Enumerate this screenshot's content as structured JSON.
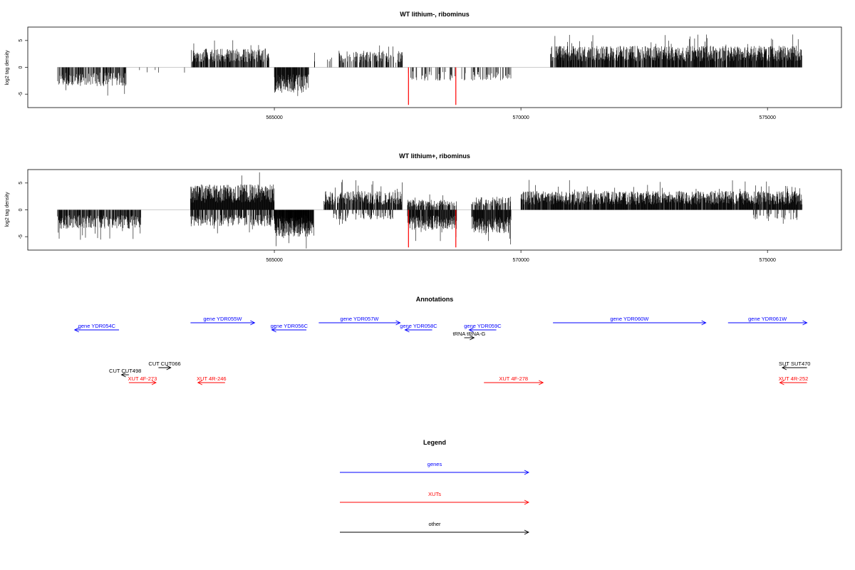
{
  "chart_data": [
    {
      "type": "bar",
      "title": "WT lithium-, ribominus",
      "ylabel": "log2 tag density",
      "xlim": [
        560000,
        576500
      ],
      "ylim": [
        -7.5,
        7.5
      ],
      "xticks": [
        565000,
        570000,
        575000
      ],
      "xtick_labels": [
        "565000",
        "570000",
        "575000"
      ],
      "yticks": [
        -5,
        0,
        5
      ],
      "ytick_labels": [
        "-5",
        "0",
        "5"
      ],
      "highlight_color": "#ff0000",
      "highlight_bars": [
        {
          "x": 567720,
          "y": -7
        },
        {
          "x": 568680,
          "y": -7
        }
      ],
      "segments": [
        {
          "from": 560600,
          "to": 562000,
          "sign": -1,
          "mean": 2.8,
          "density": 0.6
        },
        {
          "from": 562200,
          "to": 563200,
          "sign": -1,
          "mean": 0.8,
          "density": 0.05
        },
        {
          "from": 563300,
          "to": 564900,
          "sign": 1,
          "mean": 2.8,
          "density": 0.7
        },
        {
          "from": 565000,
          "to": 565700,
          "sign": -1,
          "mean": 3.8,
          "density": 0.9
        },
        {
          "from": 565800,
          "to": 566200,
          "sign": 1,
          "mean": 1.5,
          "density": 0.1
        },
        {
          "from": 566300,
          "to": 567600,
          "sign": 1,
          "mean": 2.5,
          "density": 0.5
        },
        {
          "from": 567700,
          "to": 568700,
          "sign": -1,
          "mean": 2.0,
          "density": 0.2
        },
        {
          "from": 568800,
          "to": 569800,
          "sign": -1,
          "mean": 2.0,
          "density": 0.3
        },
        {
          "from": 570600,
          "to": 575700,
          "sign": 1,
          "mean": 3.2,
          "density": 0.85
        }
      ]
    },
    {
      "type": "bar",
      "title": "WT lithium+, ribominus",
      "ylabel": "log2 tag density",
      "xlim": [
        560000,
        576500
      ],
      "ylim": [
        -7.5,
        7.5
      ],
      "xticks": [
        565000,
        570000,
        575000
      ],
      "xtick_labels": [
        "565000",
        "570000",
        "575000"
      ],
      "yticks": [
        -5,
        0,
        5
      ],
      "ytick_labels": [
        "-5",
        "0",
        "5"
      ],
      "highlight_color": "#ff0000",
      "highlight_bars": [
        {
          "x": 567720,
          "y": -7
        },
        {
          "x": 568680,
          "y": -7
        }
      ],
      "segments": [
        {
          "from": 560600,
          "to": 562300,
          "sign": -1,
          "mean": 2.8,
          "density": 0.7
        },
        {
          "from": 563300,
          "to": 565000,
          "sign": 1,
          "mean": 3.8,
          "density": 1.0
        },
        {
          "from": 563300,
          "to": 565700,
          "sign": -1,
          "mean": 2.5,
          "density": 0.6
        },
        {
          "from": 565000,
          "to": 565800,
          "sign": -1,
          "mean": 4.0,
          "density": 1.0
        },
        {
          "from": 566000,
          "to": 567600,
          "sign": 1,
          "mean": 2.8,
          "density": 0.8
        },
        {
          "from": 566200,
          "to": 567400,
          "sign": -1,
          "mean": 1.5,
          "density": 0.3
        },
        {
          "from": 567700,
          "to": 568700,
          "sign": 1,
          "mean": 1.5,
          "density": 0.6
        },
        {
          "from": 567700,
          "to": 568700,
          "sign": -1,
          "mean": 3.0,
          "density": 0.9
        },
        {
          "from": 569000,
          "to": 569800,
          "sign": -1,
          "mean": 3.5,
          "density": 0.9
        },
        {
          "from": 569000,
          "to": 569800,
          "sign": 1,
          "mean": 2.0,
          "density": 0.5
        },
        {
          "from": 570000,
          "to": 575700,
          "sign": 1,
          "mean": 2.8,
          "density": 0.9
        },
        {
          "from": 574700,
          "to": 575700,
          "sign": -1,
          "mean": 1.5,
          "density": 0.2
        }
      ]
    }
  ],
  "annotations": {
    "title": "Annotations",
    "features": [
      {
        "label": "gene YDR054C",
        "start": 561850,
        "end": 560950,
        "color": "#0000ff",
        "lane": 1
      },
      {
        "label": "gene YDR055W",
        "start": 563300,
        "end": 564600,
        "color": "#0000ff",
        "lane": 0
      },
      {
        "label": "gene YDR056C",
        "start": 565650,
        "end": 564950,
        "color": "#0000ff",
        "lane": 1
      },
      {
        "label": "gene YDR057W",
        "start": 565900,
        "end": 567550,
        "color": "#0000ff",
        "lane": 0
      },
      {
        "label": "gene YDR058C",
        "start": 568200,
        "end": 567650,
        "color": "#0000ff",
        "lane": 1
      },
      {
        "label": "gene YDR059C",
        "start": 569500,
        "end": 568950,
        "color": "#0000ff",
        "lane": 1
      },
      {
        "label": "gene YDR060W",
        "start": 570650,
        "end": 573750,
        "color": "#0000ff",
        "lane": 0
      },
      {
        "label": "gene YDR061W",
        "start": 574200,
        "end": 575800,
        "color": "#0000ff",
        "lane": 0
      },
      {
        "label": "tRNA tRNA-G",
        "start": 568850,
        "end": 569050,
        "color": "#000000",
        "lane": 2
      },
      {
        "label": "CUT CUT066",
        "start": 562650,
        "end": 562900,
        "color": "#000000",
        "lane": 3
      },
      {
        "label": "CUT CUT498",
        "start": 562050,
        "end": 561900,
        "color": "#000000",
        "lane": 4
      },
      {
        "label": "XUT 4F-273",
        "start": 562050,
        "end": 562600,
        "color": "#ff0000",
        "lane": 5
      },
      {
        "label": "XUT 4R-246",
        "start": 564000,
        "end": 563450,
        "color": "#ff0000",
        "lane": 5
      },
      {
        "label": "XUT 4F-278",
        "start": 569250,
        "end": 570450,
        "color": "#ff0000",
        "lane": 5
      },
      {
        "label": "SUT SUT470",
        "start": 575800,
        "end": 575300,
        "color": "#000000",
        "lane": 3
      },
      {
        "label": "XUT 4R-252",
        "start": 575800,
        "end": 575250,
        "color": "#ff0000",
        "lane": 5
      }
    ]
  },
  "legend": {
    "title": "Legend",
    "entries": [
      {
        "label": "genes",
        "color": "#0000ff"
      },
      {
        "label": "XUTs",
        "color": "#ff0000"
      },
      {
        "label": "other",
        "color": "#000000"
      }
    ]
  }
}
